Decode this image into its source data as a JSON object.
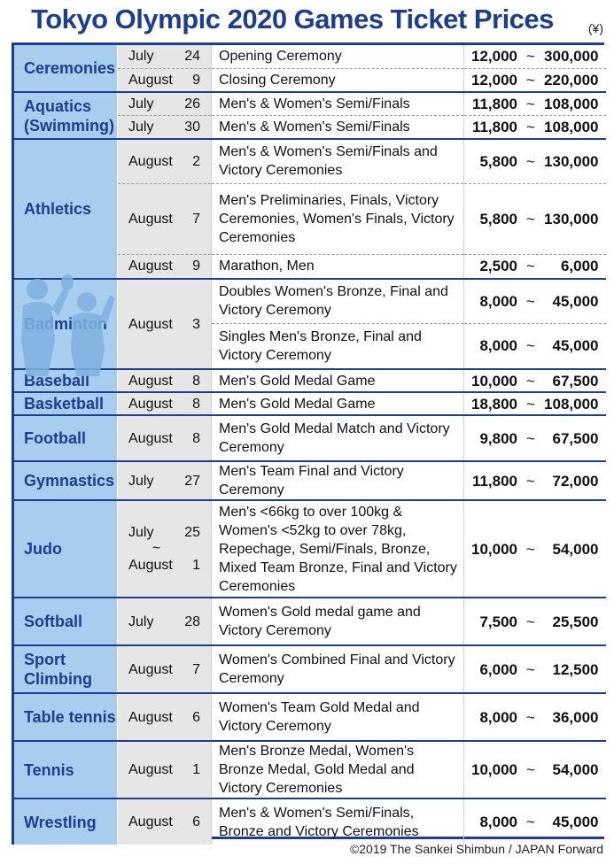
{
  "header": {
    "title": "Tokyo Olympic 2020 Games Ticket Prices",
    "unit": "(¥)"
  },
  "rows": [
    {
      "sport": "Ceremonies",
      "month": "July",
      "day": "24",
      "event": "Opening Ceremony",
      "min": "12,000",
      "max": "300,000"
    },
    {
      "month": "August",
      "day": "9",
      "event": "Closing Ceremony",
      "min": "12,000",
      "max": "220,000"
    },
    {
      "sport": "Aquatics (Swimming)",
      "month": "July",
      "day": "26",
      "event": "Men's & Women's Semi/Finals",
      "min": "11,800",
      "max": "108,000"
    },
    {
      "month": "July",
      "day": "30",
      "event": "Men's & Women's Semi/Finals",
      "min": "11,800",
      "max": "108,000"
    },
    {
      "sport": "Athletics",
      "month": "August",
      "day": "2",
      "event": "Men's & Women's Semi/Finals and Victory Ceremonies",
      "min": "5,800",
      "max": "130,000"
    },
    {
      "month": "August",
      "day": "7",
      "event": "Men's Preliminaries, Finals, Victory Ceremonies, Women's Finals, Victory Ceremonies",
      "min": "5,800",
      "max": "130,000"
    },
    {
      "month": "August",
      "day": "9",
      "event": "Marathon, Men",
      "min": "2,500",
      "max": "6,000"
    },
    {
      "sport": "Badminton",
      "month": "August",
      "day": "3",
      "event": "Doubles Women's Bronze, Final and Victory Ceremony",
      "min": "8,000",
      "max": "45,000"
    },
    {
      "event": "Singles Men's Bronze, Final and Victory Ceremony",
      "min": "8,000",
      "max": "45,000"
    },
    {
      "sport": "Baseball",
      "month": "August",
      "day": "8",
      "event": "Men's Gold Medal Game",
      "min": "10,000",
      "max": "67,500"
    },
    {
      "sport": "Basketball",
      "month": "August",
      "day": "8",
      "event": "Men's Gold Medal Game",
      "min": "18,800",
      "max": "108,000"
    },
    {
      "sport": "Football",
      "month": "August",
      "day": "8",
      "event": "Men's Gold Medal Match and Victory Ceremony",
      "min": "9,800",
      "max": "67,500"
    },
    {
      "sport": "Gymnastics",
      "month": "July",
      "day": "27",
      "event": "Men's Team Final and Victory Ceremony",
      "min": "11,800",
      "max": "72,000"
    },
    {
      "sport": "Judo",
      "month": "July",
      "day": "25",
      "month2": "August",
      "day2": "1",
      "event": "Men's <66kg to over 100kg & Women's <52kg to over 78kg, Repechage, Semi/Finals, Bronze, Mixed Team Bronze, Final and Victory Ceremonies",
      "min": "10,000",
      "max": "54,000"
    },
    {
      "sport": "Softball",
      "month": "July",
      "day": "28",
      "event": "Women's Gold medal game and Victory Ceremony",
      "min": "7,500",
      "max": "25,500"
    },
    {
      "sport": "Sport Climbing",
      "month": "August",
      "day": "7",
      "event": "Women's Combined Final and Victory Ceremony",
      "min": "6,000",
      "max": "12,500"
    },
    {
      "sport": "Table tennis",
      "month": "August",
      "day": "6",
      "event": "Women's Team Gold Medal and Victory Ceremony",
      "min": "8,000",
      "max": "36,000"
    },
    {
      "sport": "Tennis",
      "month": "August",
      "day": "1",
      "event": "Men's Bronze Medal, Women's Bronze Medal, Gold Medal and Victory Ceremonies",
      "min": "10,000",
      "max": "54,000"
    },
    {
      "sport": "Wrestling",
      "month": "August",
      "day": "6",
      "event": "Men's & Women's Semi/Finals, Bronze and Victory Ceremonies",
      "min": "8,000",
      "max": "45,000"
    }
  ],
  "tilde": "~",
  "footer": {
    "copyright": "©2019 The Sankei Shimbun / JAPAN Forward"
  },
  "colors": {
    "title": "#1d3d8f",
    "sport_column": "#a8cdee",
    "date_column": "#e6e6e6",
    "figure": "#7fb3e2"
  },
  "icons": [
    "badminton-players-silhouette"
  ]
}
